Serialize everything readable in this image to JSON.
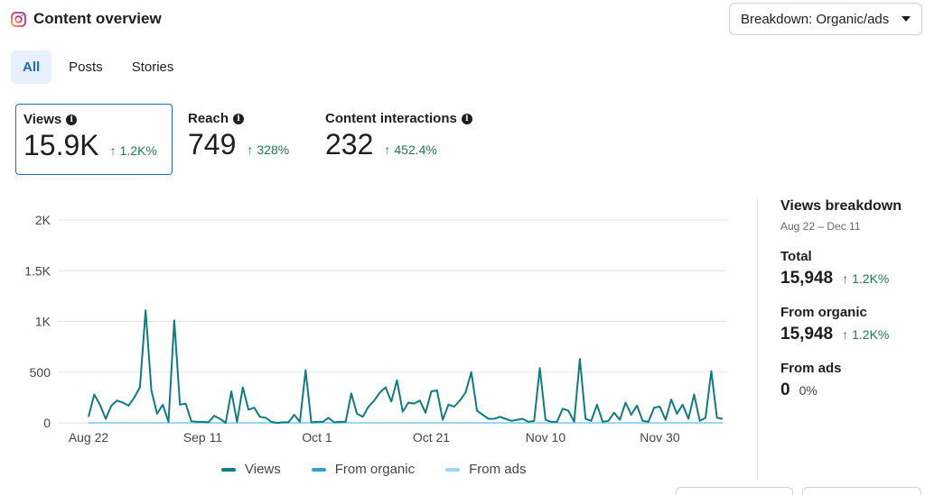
{
  "header": {
    "title": "Content overview",
    "icon": "instagram-icon"
  },
  "breakdown": {
    "label": "Breakdown: Organic/ads"
  },
  "tabs": [
    {
      "label": "All",
      "active": true
    },
    {
      "label": "Posts",
      "active": false
    },
    {
      "label": "Stories",
      "active": false
    }
  ],
  "metrics": [
    {
      "label": "Views",
      "value": "15.9K",
      "delta": "1.2K%"
    },
    {
      "label": "Reach",
      "value": "749",
      "delta": "328%"
    },
    {
      "label": "Content interactions",
      "value": "232",
      "delta": "452.4%"
    }
  ],
  "colors": {
    "accent": "#1a6dd2",
    "positive": "#1f7a4d",
    "views": "#0f7c80",
    "organic": "#3d9ad1",
    "ads": "#9bd7f2"
  },
  "chart_data": {
    "type": "line",
    "title": "",
    "xlabel": "",
    "ylabel": "",
    "ylim": [
      0,
      2000
    ],
    "yticks": [
      "2K",
      "1.5K",
      "1K",
      "500",
      "0"
    ],
    "ytick_values": [
      2000,
      1500,
      1000,
      500,
      0
    ],
    "xtick_labels": [
      "Aug 22",
      "Sep 11",
      "Oct 1",
      "Oct 21",
      "Nov 10",
      "Nov 30"
    ],
    "xtick_days": [
      0,
      20,
      40,
      60,
      80,
      100
    ],
    "num_days": 112,
    "series": [
      {
        "name": "Views",
        "values": [
          60,
          280,
          180,
          40,
          170,
          220,
          200,
          170,
          250,
          350,
          1110,
          320,
          90,
          180,
          10,
          1010,
          180,
          190,
          15,
          10,
          10,
          5,
          70,
          40,
          0,
          310,
          10,
          350,
          130,
          150,
          60,
          50,
          10,
          0,
          5,
          5,
          80,
          10,
          520,
          5,
          10,
          10,
          50,
          5,
          10,
          10,
          290,
          90,
          60,
          160,
          220,
          300,
          350,
          210,
          420,
          110,
          200,
          190,
          220,
          100,
          310,
          320,
          30,
          180,
          160,
          220,
          300,
          500,
          120,
          80,
          40,
          40,
          60,
          40,
          20,
          30,
          40,
          10,
          20,
          540,
          30,
          10,
          10,
          140,
          120,
          10,
          630,
          40,
          20,
          180,
          10,
          20,
          100,
          30,
          200,
          80,
          170,
          20,
          10,
          150,
          160,
          30,
          230,
          90,
          180,
          40,
          280,
          20,
          50,
          510,
          50,
          40
        ]
      },
      {
        "name": "From organic",
        "values": []
      },
      {
        "name": "From ads",
        "values": []
      }
    ],
    "legend": [
      "Views",
      "From organic",
      "From ads"
    ],
    "legend_position": "bottom"
  },
  "breakdown_panel": {
    "title": "Views breakdown",
    "date_range": "Aug 22 – Dec 11",
    "items": [
      {
        "label": "Total",
        "value": "15,948",
        "delta": "1.2K%"
      },
      {
        "label": "From organic",
        "value": "15,948",
        "delta": "1.2K%"
      },
      {
        "label": "From ads",
        "value": "0",
        "delta": "0%"
      }
    ]
  }
}
